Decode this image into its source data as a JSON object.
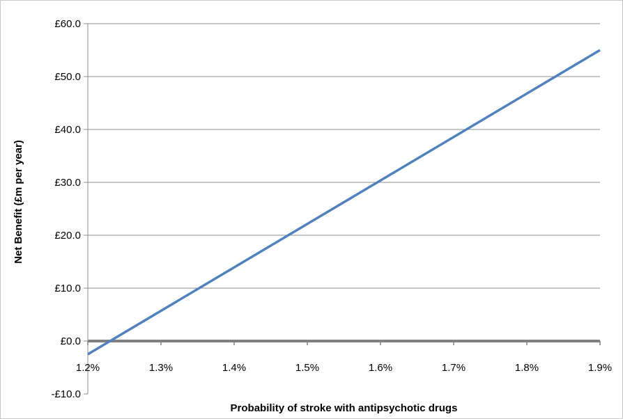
{
  "chart_data": {
    "type": "line",
    "title": "",
    "xlabel": "Probability of stroke with antipsychotic drugs",
    "ylabel": "Net Benefit (£m per year)",
    "x_tick_labels": [
      "1.2%",
      "1.3%",
      "1.4%",
      "1.5%",
      "1.6%",
      "1.7%",
      "1.8%",
      "1.9%"
    ],
    "x_ticks": [
      1.2,
      1.3,
      1.4,
      1.5,
      1.6,
      1.7,
      1.8,
      1.9
    ],
    "y_tick_labels": [
      "£60.0",
      "£50.0",
      "£40.0",
      "£30.0",
      "£20.0",
      "£10.0",
      "£0.0",
      "-£10.0"
    ],
    "y_ticks": [
      60,
      50,
      40,
      30,
      20,
      10,
      0,
      -10
    ],
    "xlim": [
      1.2,
      1.9
    ],
    "ylim": [
      -10,
      60
    ],
    "grid": "horizontal",
    "legend": "none",
    "series": [
      {
        "x": [
          1.2,
          1.9
        ],
        "y": [
          -2.5,
          55.0
        ],
        "color": "#4f81bd"
      }
    ],
    "zero_line_color": "#808080",
    "gridline_color": "#8c8c8c"
  }
}
